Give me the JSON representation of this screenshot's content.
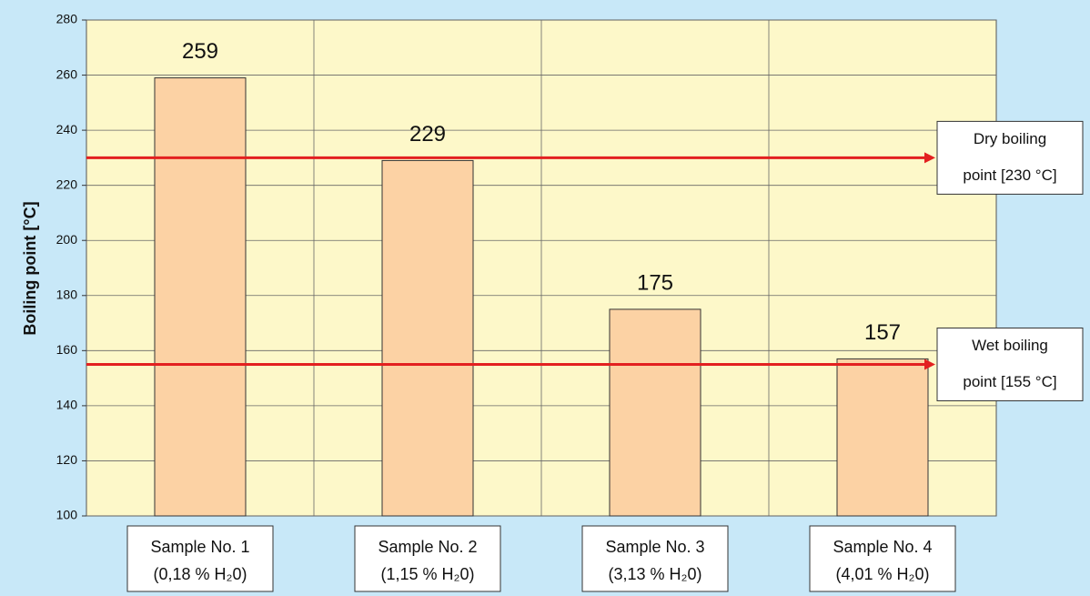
{
  "chart_data": {
    "type": "bar",
    "y_label": "Boiling point [°C]",
    "categories": [
      "Sample No. 1",
      "Sample No. 2",
      "Sample No. 3",
      "Sample No. 4"
    ],
    "category_notes": [
      "(0,18 % H₂0)",
      "(1,15 % H₂0)",
      "(3,13 % H₂0)",
      "(4,01 % H₂0)"
    ],
    "values": [
      259,
      229,
      175,
      157
    ],
    "color": "#fcd2a4",
    "ylim": [
      100,
      280
    ],
    "yticks": [
      100,
      120,
      140,
      160,
      180,
      200,
      220,
      240,
      260,
      280
    ],
    "grid": true,
    "reference_lines": [
      {
        "value": 230,
        "color": "#e32020",
        "label": [
          "Dry boiling",
          "point [230 °C]"
        ]
      },
      {
        "value": 155,
        "color": "#e32020",
        "label": [
          "Wet boiling",
          "point [155 °C]"
        ]
      }
    ]
  }
}
